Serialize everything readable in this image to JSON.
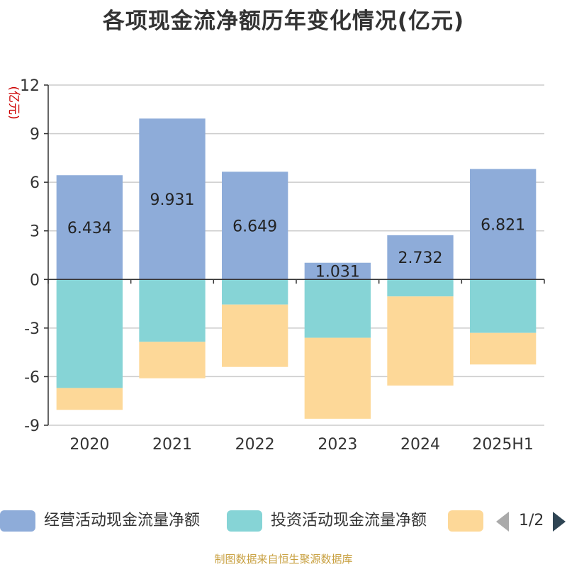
{
  "chart_data": {
    "type": "bar",
    "stacked": true,
    "title": "各项现金流净额历年变化情况(亿元)",
    "ylabel": "(亿元)",
    "ylim": [
      -9,
      12
    ],
    "yticks": [
      12,
      9,
      6,
      3,
      0,
      -3,
      -6,
      -9
    ],
    "categories": [
      "2020",
      "2021",
      "2022",
      "2023",
      "2024",
      "2025H1"
    ],
    "grid": true,
    "legend_position": "bottom",
    "series": [
      {
        "name": "经营活动现金流量净额",
        "color": "#8eacd9",
        "values": [
          6.434,
          9.931,
          6.649,
          1.031,
          2.732,
          6.821
        ],
        "labels": [
          "6.434",
          "9.931",
          "6.649",
          "1.031",
          "2.732",
          "6.821"
        ]
      },
      {
        "name": "投资活动现金流量净额",
        "color": "#86d4d6",
        "values": [
          -6.7,
          -3.85,
          -1.55,
          -3.6,
          -1.05,
          -3.3
        ]
      },
      {
        "name": "",
        "color": "#fdd898",
        "values": [
          -1.35,
          -2.25,
          -3.85,
          -5.0,
          -5.5,
          -1.95
        ]
      }
    ]
  },
  "legend": {
    "items": [
      {
        "label": "经营活动现金流量净额",
        "color": "#8eacd9"
      },
      {
        "label": "投资活动现金流量净额",
        "color": "#86d4d6"
      },
      {
        "label": "",
        "color": "#fdd898"
      }
    ],
    "pager": "1/2"
  },
  "footer": {
    "source": "制图数据来自恒生聚源数据库"
  },
  "colors": {
    "axis_label": "#cc0000",
    "grid": "#cccccc",
    "text": "#333333"
  }
}
